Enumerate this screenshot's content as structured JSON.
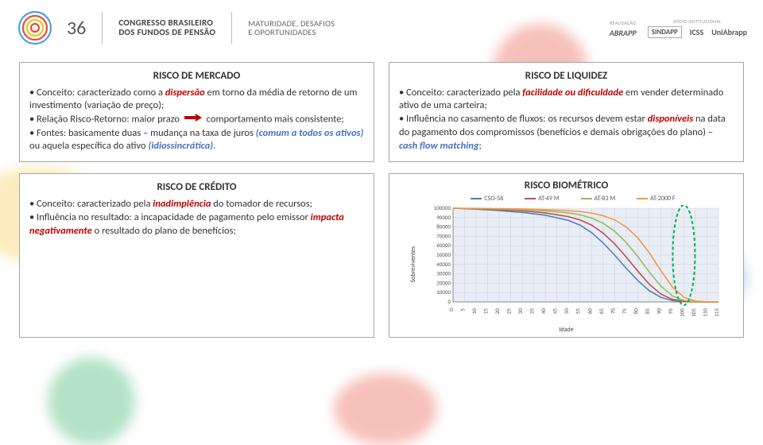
{
  "header": {
    "event_number": "36",
    "line1": "CONGRESSO BRASILEIRO",
    "line2": "DOS FUNDOS DE PENSÃO",
    "tagline1": "MATURIDADE, DESAFIOS",
    "tagline2": "E OPORTUNIDADES",
    "realizacao_label": "REALIZAÇÃO",
    "apoio_label": "APOIO INSTITUCIONAL",
    "sponsors": [
      "ABRAPP",
      "SINDAPP",
      "ICSS",
      "UniAbrapp"
    ]
  },
  "cards": {
    "mercado": {
      "title": "RISCO DE MERCADO",
      "b1_pre": "• Conceito: caracterizado como a ",
      "b1_hi": "dispersão",
      "b1_post": " em torno da média de retorno de um investimento (variação de preço);",
      "b2_pre": "• Relação Risco-Retorno: maior prazo ",
      "b2_post": " comportamento mais consistente;",
      "b3_pre": "• Fontes: basicamente duas – mudança na taxa de juros ",
      "b3_hi": "(comum a todos os ativos)",
      "b3_post": " ou aquela específica do ativo ",
      "b3_hi2": "(idiossincrática)",
      "b3_end": "."
    },
    "liquidez": {
      "title": "RISCO DE LIQUIDEZ",
      "b1_pre": "• Conceito: caracterizado pela ",
      "b1_hi": "facilidade ou dificuldade",
      "b1_post": " em vender determinado ativo de uma carteira;",
      "b2_pre": "• Influência no casamento de fluxos: os recursos devem estar ",
      "b2_hi": "disponíveis",
      "b2_mid": " na data do pagamento dos compromissos (benefícios e demais obrigações do plano) – ",
      "b2_hi2": "cash flow matching",
      "b2_end": ";"
    },
    "credito": {
      "title": "RISCO DE CRÉDITO",
      "b1_pre": "• Conceito: caracterizado pela ",
      "b1_hi": "inadimplência",
      "b1_post": " do tomador de recursos;",
      "b2_pre": "• Influência no resultado: a incapacidade de pagamento pelo emissor ",
      "b2_hi": "impacta negativamente",
      "b2_post": " o resultado do plano de benefícios;"
    },
    "biometrico": {
      "title": "RISCO BIOMÉTRICO"
    }
  },
  "chart": {
    "type": "line",
    "ylabel": "Sobreviventes",
    "xlabel": "Idade",
    "xlim": [
      0,
      115
    ],
    "ylim": [
      0,
      100000
    ],
    "xtick_step": 5,
    "ytick_step": 10000,
    "xticks": [
      0,
      5,
      10,
      15,
      20,
      25,
      30,
      35,
      40,
      45,
      50,
      55,
      60,
      65,
      70,
      75,
      80,
      85,
      90,
      95,
      100,
      105,
      110,
      115
    ],
    "yticks": [
      0,
      10000,
      20000,
      30000,
      40000,
      50000,
      60000,
      70000,
      80000,
      90000,
      100000
    ],
    "background_color": "#e9edf5",
    "grid_color": "#d0d5e0",
    "axis_color": "#888888",
    "tick_fontsize": 7,
    "label_fontsize": 8,
    "line_width": 1.6,
    "highlight": {
      "x": 100,
      "color": "#00b050",
      "dash": "4,3",
      "width": 2
    },
    "series": [
      {
        "name": "CSO-58",
        "color": "#4f81bd",
        "points": [
          [
            0,
            100000
          ],
          [
            10,
            99000
          ],
          [
            20,
            97500
          ],
          [
            30,
            95500
          ],
          [
            40,
            92500
          ],
          [
            50,
            87000
          ],
          [
            55,
            82000
          ],
          [
            60,
            74000
          ],
          [
            65,
            63000
          ],
          [
            70,
            50000
          ],
          [
            75,
            36000
          ],
          [
            80,
            23000
          ],
          [
            85,
            12000
          ],
          [
            90,
            5000
          ],
          [
            95,
            1500
          ],
          [
            100,
            300
          ],
          [
            105,
            0
          ],
          [
            115,
            0
          ]
        ]
      },
      {
        "name": "AT-49 M",
        "color": "#c0504d",
        "points": [
          [
            0,
            100000
          ],
          [
            10,
            99300
          ],
          [
            20,
            98500
          ],
          [
            30,
            97200
          ],
          [
            40,
            95000
          ],
          [
            50,
            91000
          ],
          [
            55,
            87500
          ],
          [
            60,
            82000
          ],
          [
            65,
            73500
          ],
          [
            70,
            62000
          ],
          [
            75,
            48000
          ],
          [
            80,
            33000
          ],
          [
            85,
            19000
          ],
          [
            90,
            8500
          ],
          [
            95,
            2800
          ],
          [
            100,
            600
          ],
          [
            105,
            50
          ],
          [
            115,
            0
          ]
        ]
      },
      {
        "name": "AT-83 M",
        "color": "#9bbb59",
        "points": [
          [
            0,
            100000
          ],
          [
            10,
            99600
          ],
          [
            20,
            99100
          ],
          [
            30,
            98400
          ],
          [
            40,
            97200
          ],
          [
            50,
            95000
          ],
          [
            55,
            93000
          ],
          [
            60,
            89500
          ],
          [
            65,
            84000
          ],
          [
            70,
            75500
          ],
          [
            75,
            63500
          ],
          [
            80,
            48500
          ],
          [
            85,
            32000
          ],
          [
            90,
            17000
          ],
          [
            95,
            6500
          ],
          [
            100,
            1600
          ],
          [
            105,
            200
          ],
          [
            115,
            0
          ]
        ]
      },
      {
        "name": "AT-2000 F",
        "color": "#f79646",
        "points": [
          [
            0,
            100000
          ],
          [
            10,
            99800
          ],
          [
            20,
            99500
          ],
          [
            30,
            99100
          ],
          [
            40,
            98500
          ],
          [
            50,
            97400
          ],
          [
            55,
            96400
          ],
          [
            60,
            94800
          ],
          [
            65,
            92000
          ],
          [
            70,
            87500
          ],
          [
            75,
            80000
          ],
          [
            80,
            68500
          ],
          [
            85,
            52500
          ],
          [
            90,
            33500
          ],
          [
            95,
            16000
          ],
          [
            100,
            5000
          ],
          [
            105,
            900
          ],
          [
            110,
            60
          ],
          [
            115,
            0
          ]
        ]
      }
    ]
  },
  "colors": {
    "border": "#a6a6a6",
    "text": "#333333",
    "red": "#c00000",
    "blue": "#4472c4",
    "arrow": "#c00000"
  }
}
